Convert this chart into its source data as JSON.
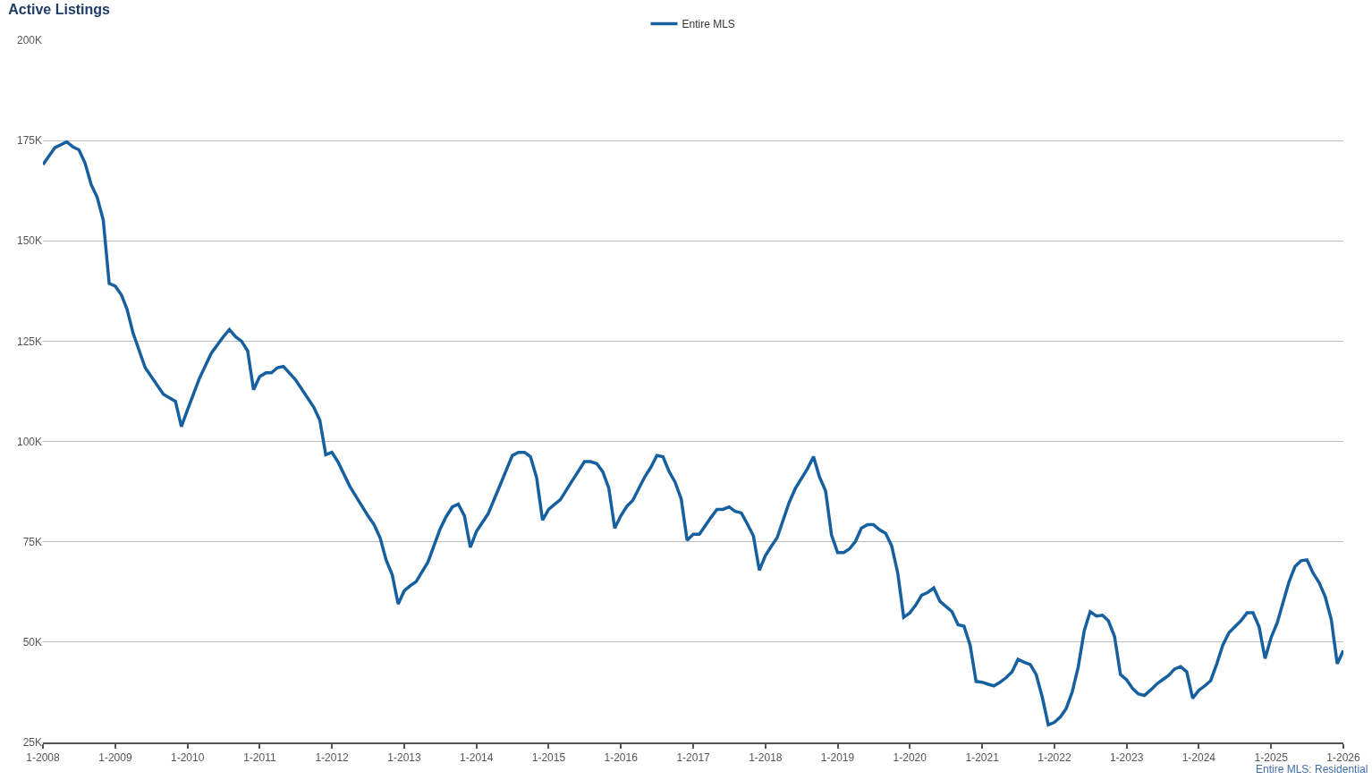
{
  "chart_data": {
    "type": "line",
    "title": "Active Listings",
    "annotations": [
      "Entire MLS: Residential"
    ],
    "x": [
      "2008-01",
      "2008-02",
      "2008-03",
      "2008-05",
      "2008-06",
      "2008-07",
      "2008-08",
      "2008-09",
      "2008-10",
      "2008-11",
      "2008-12",
      "2009-01",
      "2009-02",
      "2009-03",
      "2009-04",
      "2009-06",
      "2009-09",
      "2009-11",
      "2009-12",
      "2010-01",
      "2010-03",
      "2010-05",
      "2010-07",
      "2010-08",
      "2010-09",
      "2010-10",
      "2010-11",
      "2010-12",
      "2011-01",
      "2011-02",
      "2011-03",
      "2011-04",
      "2011-05",
      "2011-07",
      "2011-10",
      "2011-11",
      "2011-12",
      "2012-01",
      "2012-02",
      "2012-04",
      "2012-07",
      "2012-08",
      "2012-09",
      "2012-10",
      "2012-11",
      "2012-12",
      "2013-01",
      "2013-02",
      "2013-03",
      "2013-05",
      "2013-07",
      "2013-08",
      "2013-09",
      "2013-10",
      "2013-11",
      "2013-12",
      "2014-01",
      "2014-03",
      "2014-05",
      "2014-06",
      "2014-07",
      "2014-08",
      "2014-09",
      "2014-10",
      "2014-11",
      "2014-12",
      "2015-01",
      "2015-02",
      "2015-03",
      "2015-05",
      "2015-07",
      "2015-08",
      "2015-09",
      "2015-10",
      "2015-11",
      "2015-12",
      "2016-01",
      "2016-02",
      "2016-03",
      "2016-05",
      "2016-06",
      "2016-07",
      "2016-08",
      "2016-09",
      "2016-10",
      "2016-11",
      "2016-12",
      "2017-01",
      "2017-02",
      "2017-04",
      "2017-05",
      "2017-06",
      "2017-07",
      "2017-08",
      "2017-09",
      "2017-10",
      "2017-11",
      "2017-12",
      "2018-01",
      "2018-02",
      "2018-03",
      "2018-05",
      "2018-06",
      "2018-08",
      "2018-09",
      "2018-10",
      "2018-11",
      "2018-12",
      "2019-01",
      "2019-02",
      "2019-03",
      "2019-04",
      "2019-05",
      "2019-06",
      "2019-07",
      "2019-08",
      "2019-09",
      "2019-10",
      "2019-11",
      "2019-12",
      "2020-01",
      "2020-02",
      "2020-03",
      "2020-04",
      "2020-05",
      "2020-06",
      "2020-07",
      "2020-08",
      "2020-09",
      "2020-10",
      "2020-11",
      "2020-12",
      "2021-01",
      "2021-02",
      "2021-03",
      "2021-04",
      "2021-05",
      "2021-06",
      "2021-07",
      "2021-08",
      "2021-09",
      "2021-10",
      "2021-11",
      "2021-12",
      "2022-01",
      "2022-02",
      "2022-03",
      "2022-04",
      "2022-05",
      "2022-06",
      "2022-07",
      "2022-08",
      "2022-09",
      "2022-10",
      "2022-11",
      "2022-12",
      "2023-01",
      "2023-02",
      "2023-03",
      "2023-04",
      "2023-05",
      "2023-06",
      "2023-07",
      "2023-08",
      "2023-09",
      "2023-10",
      "2023-11",
      "2023-12",
      "2024-01",
      "2024-02",
      "2024-03",
      "2024-04",
      "2024-05",
      "2024-06",
      "2024-07",
      "2024-08",
      "2024-09",
      "2024-10",
      "2024-11",
      "2024-12",
      "2025-01",
      "2025-02",
      "2025-03",
      "2025-04",
      "2025-05",
      "2025-06",
      "2025-07",
      "2025-08",
      "2025-09",
      "2025-10",
      "2025-11",
      "2025-12",
      "2026-01"
    ],
    "series": [
      {
        "name": "Entire MLS",
        "color": "#17609f",
        "values": [
          169,
          171.2,
          173.2,
          174.7,
          173.4,
          172.7,
          169.4,
          164,
          160.9,
          155.2,
          139.4,
          138.7,
          136.5,
          133,
          127,
          118.4,
          111.8,
          110,
          103.7,
          107.9,
          115.6,
          122,
          126.1,
          127.9,
          126.1,
          125,
          122.6,
          112.9,
          116.2,
          117.1,
          117.1,
          118.4,
          118.7,
          115.4,
          108.6,
          105.3,
          96.7,
          97.3,
          94.9,
          88.8,
          81.5,
          79.3,
          76,
          70.5,
          66.8,
          59.5,
          62.8,
          64.1,
          65,
          70,
          78.2,
          81.3,
          83.7,
          84.4,
          81.5,
          73.6,
          77.6,
          82,
          89.2,
          92.9,
          96.5,
          97.3,
          97.3,
          96.2,
          91,
          80.4,
          83.1,
          84.4,
          85.5,
          90.3,
          95,
          95,
          94.5,
          92.5,
          88.4,
          78.4,
          81.5,
          83.9,
          85.3,
          91.2,
          93.6,
          96.5,
          96.2,
          92.5,
          89.9,
          85.7,
          75.4,
          76.9,
          76.9,
          81.1,
          83.1,
          83.1,
          83.7,
          82.6,
          82.2,
          79.5,
          76.5,
          67.9,
          71.6,
          74,
          76,
          84.8,
          88.3,
          93.2,
          96.2,
          91.2,
          87.7,
          76.7,
          72.3,
          72.3,
          73.2,
          75.1,
          78.4,
          79.3,
          79.3,
          78,
          77.1,
          74,
          67.2,
          56.2,
          57.3,
          59.3,
          61.7,
          62.4,
          63.5,
          60.2,
          58.9,
          57.6,
          54.3,
          54,
          49.2,
          40.2,
          40,
          39.5,
          39.1,
          40,
          41.1,
          42.6,
          45.7,
          45,
          44.4,
          41.9,
          36.2,
          29.4,
          30,
          31.4,
          33.4,
          37.6,
          43.7,
          52.9,
          57.6,
          56.5,
          56.7,
          55.3,
          51.4,
          41.9,
          40.6,
          38.4,
          37.1,
          36.7,
          38,
          39.5,
          40.6,
          41.7,
          43.3,
          43.9,
          42.6,
          36,
          38,
          39.1,
          40.4,
          44.6,
          49.2,
          52.3,
          53.8,
          55.3,
          57.3,
          57.3,
          53.8,
          45.9,
          51.2,
          54.9,
          59.7,
          65,
          68.8,
          70.3,
          70.5,
          67.2,
          64.8,
          61.3,
          55.6,
          44.6,
          47.9
        ]
      }
    ],
    "xlim": [
      "2008-01",
      "2026-01"
    ],
    "xticks": [
      {
        "value": "2008-01",
        "label": "1-2008"
      },
      {
        "value": "2009-01",
        "label": "1-2009"
      },
      {
        "value": "2010-01",
        "label": "1-2010"
      },
      {
        "value": "2011-01",
        "label": "1-2011"
      },
      {
        "value": "2012-01",
        "label": "1-2012"
      },
      {
        "value": "2013-01",
        "label": "1-2013"
      },
      {
        "value": "2014-01",
        "label": "1-2014"
      },
      {
        "value": "2015-01",
        "label": "1-2015"
      },
      {
        "value": "2016-01",
        "label": "1-2016"
      },
      {
        "value": "2017-01",
        "label": "1-2017"
      },
      {
        "value": "2018-01",
        "label": "1-2018"
      },
      {
        "value": "2019-01",
        "label": "1-2019"
      },
      {
        "value": "2020-01",
        "label": "1-2020"
      },
      {
        "value": "2021-01",
        "label": "1-2021"
      },
      {
        "value": "2022-01",
        "label": "1-2022"
      },
      {
        "value": "2023-01",
        "label": "1-2023"
      },
      {
        "value": "2024-01",
        "label": "1-2024"
      },
      {
        "value": "2025-01",
        "label": "1-2025"
      },
      {
        "value": "2026-01",
        "label": "1-2026"
      }
    ],
    "ylim": [
      25,
      200
    ],
    "yticks": [
      {
        "value": 25,
        "label": "25K"
      },
      {
        "value": 50,
        "label": "50K"
      },
      {
        "value": 75,
        "label": "75K"
      },
      {
        "value": 100,
        "label": "100K"
      },
      {
        "value": 125,
        "label": "125K"
      },
      {
        "value": 150,
        "label": "150K"
      },
      {
        "value": 175,
        "label": "175K"
      },
      {
        "value": 200,
        "label": "200K"
      }
    ],
    "grid": "y",
    "legend": "top",
    "marker": "none",
    "line_style": "solid"
  }
}
